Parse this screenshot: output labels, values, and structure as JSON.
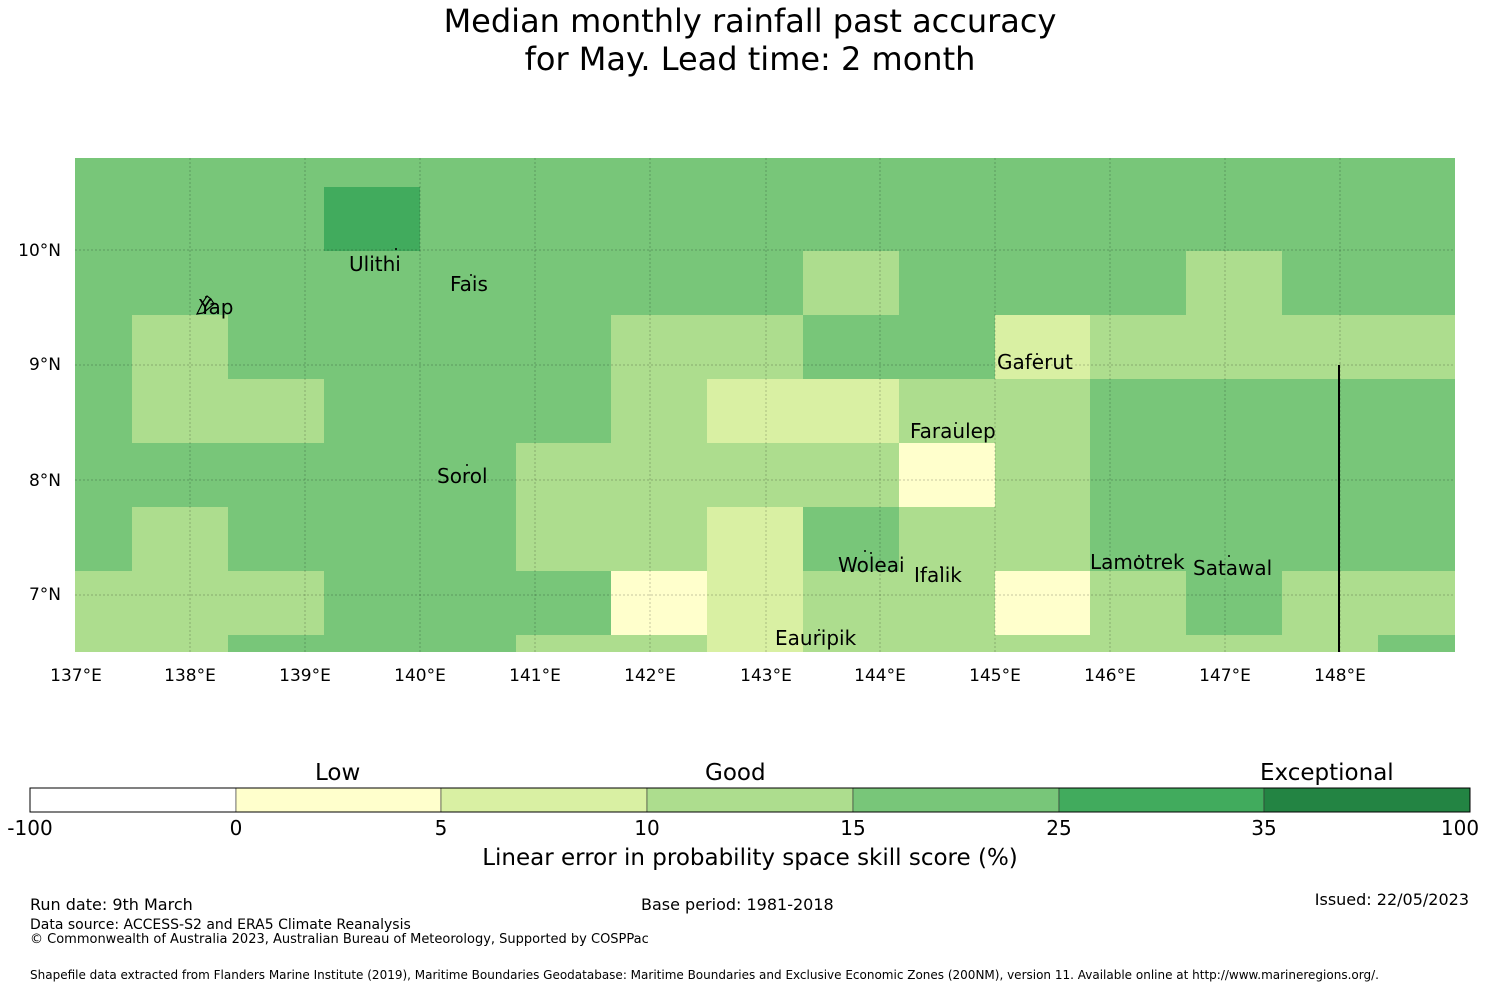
{
  "title_line1": "Median monthly rainfall past accuracy",
  "title_line2": "for May. Lead time: 2 month",
  "map": {
    "lon_labels": [
      "137°E",
      "138°E",
      "139°E",
      "140°E",
      "141°E",
      "142°E",
      "143°E",
      "144°E",
      "145°E",
      "146°E",
      "147°E",
      "148°E"
    ],
    "lat_labels": [
      "10°N",
      "9°N",
      "8°N",
      "7°N"
    ],
    "places": [
      {
        "name": "Ulithi"
      },
      {
        "name": "Fais"
      },
      {
        "name": "Yap"
      },
      {
        "name": "Gaferut"
      },
      {
        "name": "Faraulep"
      },
      {
        "name": "Sorol"
      },
      {
        "name": "Woleai"
      },
      {
        "name": "Ifalik"
      },
      {
        "name": "Lamotrek"
      },
      {
        "name": "Satawal"
      },
      {
        "name": "Eauripik"
      }
    ],
    "colors": {
      "c0": "#ffffcc",
      "c5": "#d9f0a3",
      "c10": "#addd8e",
      "c15": "#78c679",
      "c25": "#41ab5d",
      "c35": "#238443"
    }
  },
  "colorbar": {
    "categories": [
      "Low",
      "Good",
      "Exceptional"
    ],
    "ticks": [
      "-100",
      "0",
      "5",
      "10",
      "15",
      "25",
      "35",
      "100"
    ],
    "colors": [
      "#ffffff",
      "#ffffcc",
      "#d9f0a3",
      "#addd8e",
      "#78c679",
      "#41ab5d",
      "#238443"
    ],
    "label": "Linear error in probability space skill score (%)"
  },
  "footer": {
    "run_date": "Run date: 9th March",
    "base_period": "Base period: 1981-2018",
    "issued": "Issued: 22/05/2023",
    "data_source": "Data source: ACCESS-S2 and ERA5 Climate Reanalysis",
    "copyright": "© Commonwealth of Australia 2023, Australian Bureau of Meteorology, Supported by COSPPac",
    "shapefile": "Shapefile data extracted from Flanders Marine Institute (2019), Maritime Boundaries Geodatabase: Maritime Boundaries and Exclusive Economic Zones (200NM), version 11. Available online at http://www.marineregions.org/."
  }
}
